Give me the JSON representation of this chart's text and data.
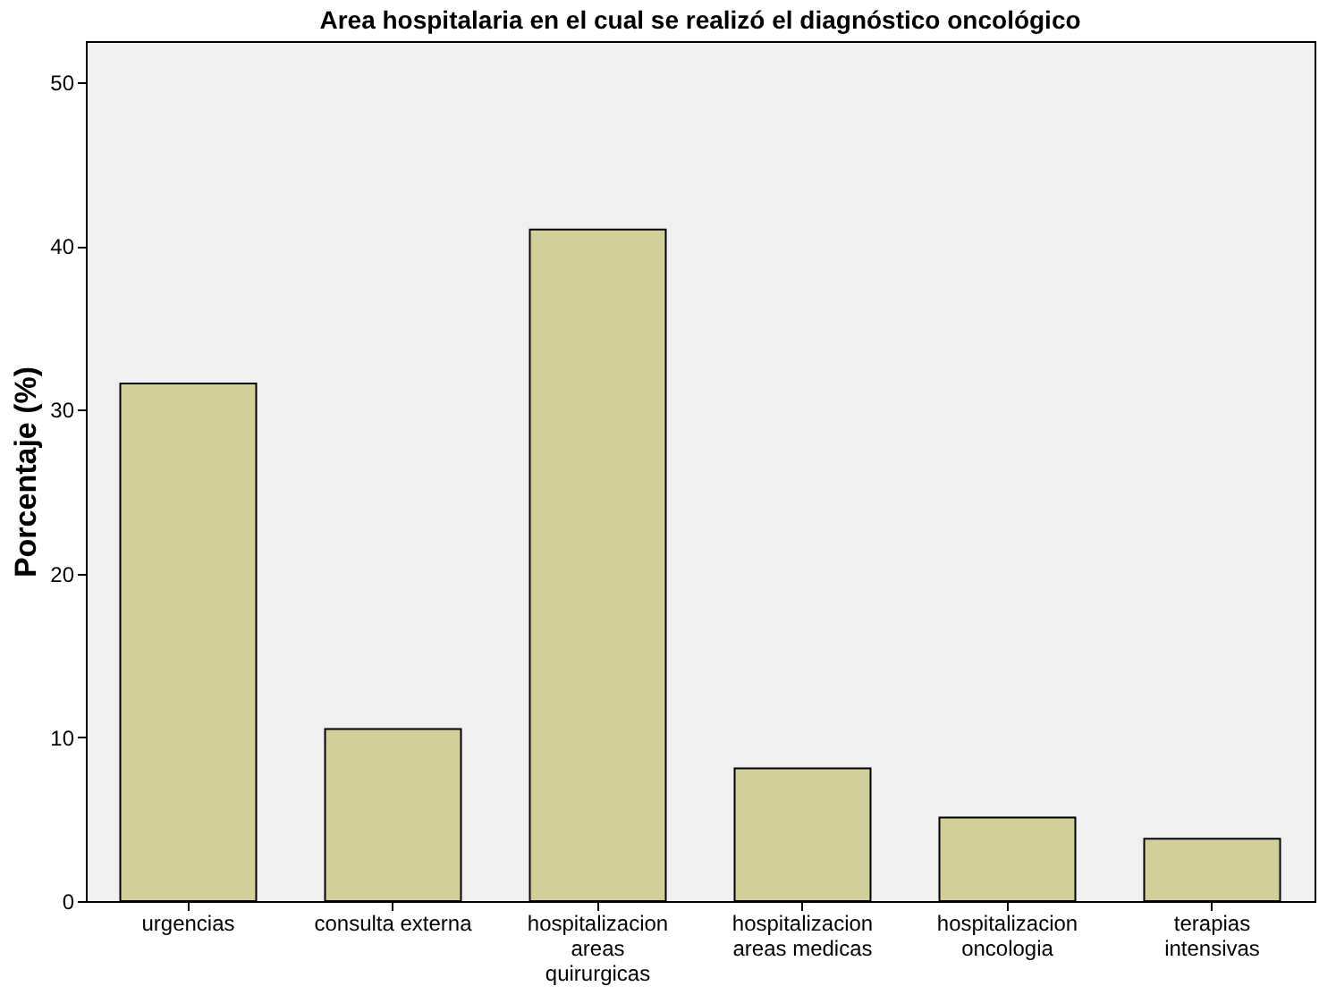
{
  "chart_data": {
    "type": "bar",
    "title": "Area hospitalaria en el cual se realizó el diagnóstico oncológico",
    "ylabel": "Porcentaje (%)",
    "categories": [
      "urgencias",
      "consulta externa",
      "hospitalizacion areas quirurgicas",
      "hospitalizacion areas medicas",
      "hospitalizacion oncologia",
      "terapias intensivas"
    ],
    "values": [
      31.6,
      10.5,
      41.0,
      8.1,
      5.1,
      3.8
    ],
    "color": "#d3cf99",
    "ylim": [
      0,
      52.5
    ],
    "yticks": [
      0,
      10,
      20,
      30,
      40,
      50
    ],
    "grid": false
  }
}
